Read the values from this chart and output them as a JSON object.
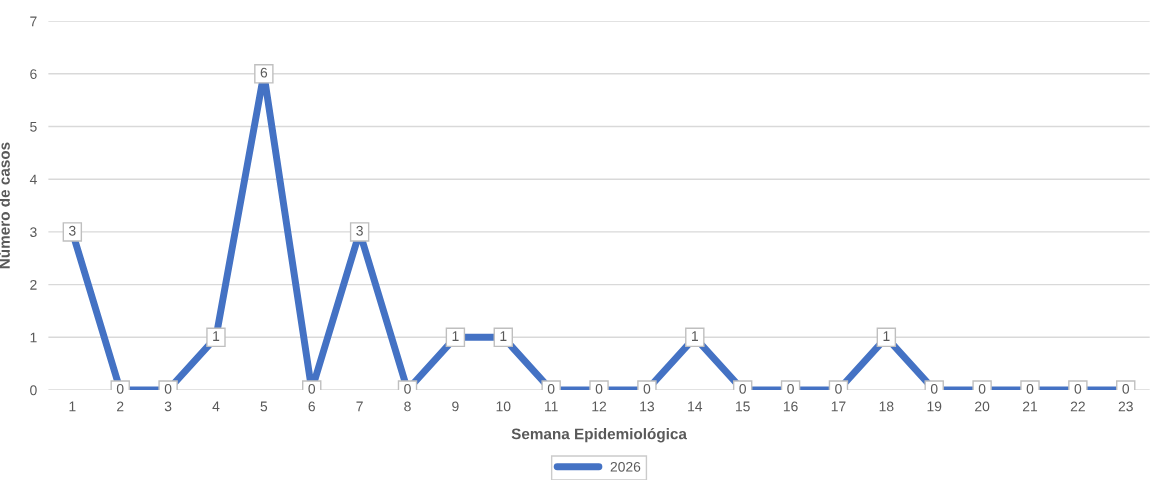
{
  "chart_data": {
    "type": "line",
    "xlabel": "Semana Epidemiológica",
    "ylabel": "Número de casos",
    "categories": [
      "1",
      "2",
      "3",
      "4",
      "5",
      "6",
      "7",
      "8",
      "9",
      "10",
      "11",
      "12",
      "13",
      "14",
      "15",
      "16",
      "17",
      "18",
      "19",
      "20",
      "21",
      "22",
      "23"
    ],
    "series": [
      {
        "name": "2026",
        "color": "#4472c4",
        "values": [
          3,
          0,
          0,
          1,
          6,
          0,
          3,
          0,
          1,
          1,
          0,
          0,
          0,
          1,
          0,
          0,
          0,
          1,
          0,
          0,
          0,
          0,
          0
        ]
      }
    ],
    "ylim": [
      0,
      7
    ],
    "yticks": [
      0,
      1,
      2,
      3,
      4,
      5,
      6,
      7
    ],
    "grid": "y",
    "legend": "bottom",
    "data_labels": true,
    "marker": "square",
    "line_style": "solid"
  }
}
